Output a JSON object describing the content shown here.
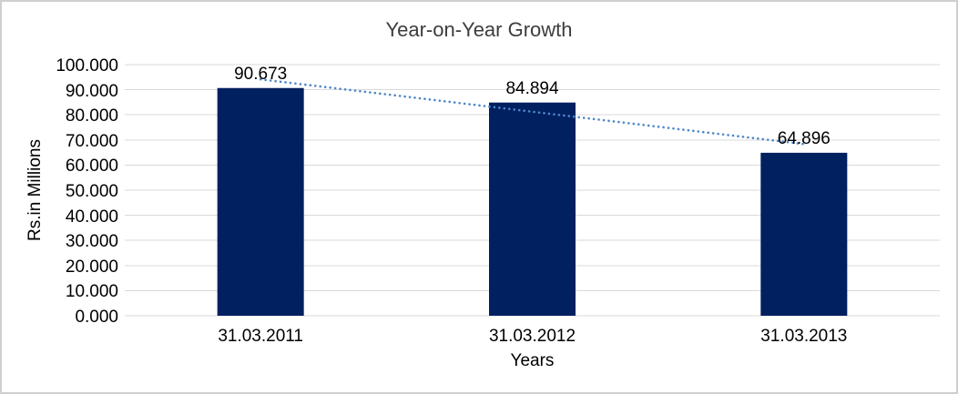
{
  "chart_data": {
    "type": "bar",
    "title": "Year-on-Year Growth",
    "xlabel": "Years",
    "ylabel": "Rs.in Millions",
    "categories": [
      "31.03.2011",
      "31.03.2012",
      "31.03.2013"
    ],
    "values": [
      90.673,
      84.894,
      64.896
    ],
    "data_labels": [
      "90.673",
      "84.894",
      "64.896"
    ],
    "ylim": [
      0,
      100
    ],
    "ytick_step": 10,
    "yticks": [
      {
        "value": 100,
        "label": "100.000"
      },
      {
        "value": 90,
        "label": "90.000"
      },
      {
        "value": 80,
        "label": "80.000"
      },
      {
        "value": 70,
        "label": "70.000"
      },
      {
        "value": 60,
        "label": "60.000"
      },
      {
        "value": 50,
        "label": "50.000"
      },
      {
        "value": 40,
        "label": "40.000"
      },
      {
        "value": 30,
        "label": "30.000"
      },
      {
        "value": 20,
        "label": "20.000"
      },
      {
        "value": 10,
        "label": "10.000"
      },
      {
        "value": 0,
        "label": "0.000"
      }
    ],
    "grid": true,
    "legend": "none",
    "trendline": {
      "type": "linear",
      "style": "dotted"
    },
    "colors": {
      "bar": "#002060",
      "trendline": "#4e87c8",
      "gridline": "#d9d9d9",
      "axis_text": "#000000",
      "frame_border": "#cfcfcf"
    }
  }
}
